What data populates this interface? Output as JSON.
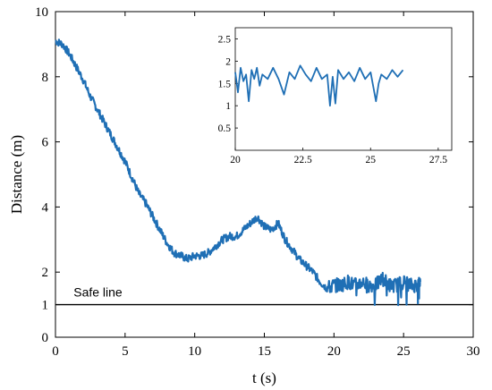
{
  "chart_data": [
    {
      "type": "line",
      "xlabel": "t (s)",
      "ylabel": "Distance (m)",
      "xlim": [
        0,
        30
      ],
      "ylim": [
        0,
        10
      ],
      "xticks": [
        "0",
        "5",
        "10",
        "15",
        "20",
        "25",
        "30"
      ],
      "yticks": [
        "0",
        "1",
        "2",
        "4",
        "6",
        "8",
        "10"
      ],
      "grid": false,
      "series_color": "#1f6fb5",
      "safe_line": {
        "y": 1,
        "label": "Safe line",
        "color": "#000000"
      },
      "series": [
        {
          "x": [
            0,
            0.5,
            1,
            1.5,
            2,
            2.5,
            3,
            3.5,
            4,
            4.5,
            5,
            5.5,
            6,
            6.5,
            7,
            7.5,
            8,
            8.5,
            9,
            9.5,
            10,
            10.5,
            11,
            11.5,
            12,
            12.5,
            13,
            13.5,
            14,
            14.5,
            15,
            15.5,
            16,
            16.5,
            17,
            17.5,
            18,
            18.5,
            19,
            19.5,
            20,
            20.5,
            21,
            21.5,
            22,
            22.5,
            23,
            23.5,
            24,
            24.5,
            25,
            25.5,
            26,
            26.2
          ],
          "y": [
            9.1,
            9.0,
            8.7,
            8.3,
            7.9,
            7.4,
            7.0,
            6.6,
            6.2,
            5.8,
            5.4,
            4.9,
            4.4,
            4.1,
            3.7,
            3.3,
            2.9,
            2.6,
            2.5,
            2.4,
            2.5,
            2.5,
            2.6,
            2.8,
            3.0,
            3.1,
            3.1,
            3.3,
            3.5,
            3.7,
            3.4,
            3.3,
            3.5,
            3.0,
            2.7,
            2.4,
            2.2,
            2.0,
            1.7,
            1.5,
            1.6,
            1.6,
            1.7,
            1.6,
            1.7,
            1.6,
            1.6,
            1.8,
            1.6,
            1.6,
            1.7,
            1.6,
            1.6,
            1.7
          ]
        }
      ]
    },
    {
      "type": "line",
      "xlim": [
        20,
        28
      ],
      "ylim": [
        0,
        2.75
      ],
      "xticks": [
        "20",
        "22.5",
        "25",
        "27.5"
      ],
      "yticks": [
        "0.5",
        "1",
        "1.5",
        "2",
        "2.5"
      ],
      "grid": false,
      "series": [
        {
          "x": [
            20,
            20.1,
            20.2,
            20.3,
            20.4,
            20.5,
            20.6,
            20.7,
            20.8,
            20.9,
            21,
            21.2,
            21.4,
            21.6,
            21.8,
            22,
            22.2,
            22.4,
            22.6,
            22.8,
            23,
            23.2,
            23.4,
            23.5,
            23.6,
            23.7,
            23.8,
            24,
            24.2,
            24.4,
            24.6,
            24.8,
            25,
            25.2,
            25.3,
            25.4,
            25.6,
            25.8,
            26,
            26.2
          ],
          "y": [
            1.75,
            1.3,
            1.85,
            1.55,
            1.7,
            1.1,
            1.8,
            1.6,
            1.85,
            1.45,
            1.7,
            1.6,
            1.85,
            1.6,
            1.25,
            1.75,
            1.6,
            1.9,
            1.7,
            1.55,
            1.85,
            1.6,
            1.7,
            1.0,
            1.65,
            1.05,
            1.8,
            1.6,
            1.75,
            1.55,
            1.85,
            1.6,
            1.75,
            1.1,
            1.5,
            1.7,
            1.6,
            1.8,
            1.65,
            1.8
          ]
        }
      ]
    }
  ]
}
